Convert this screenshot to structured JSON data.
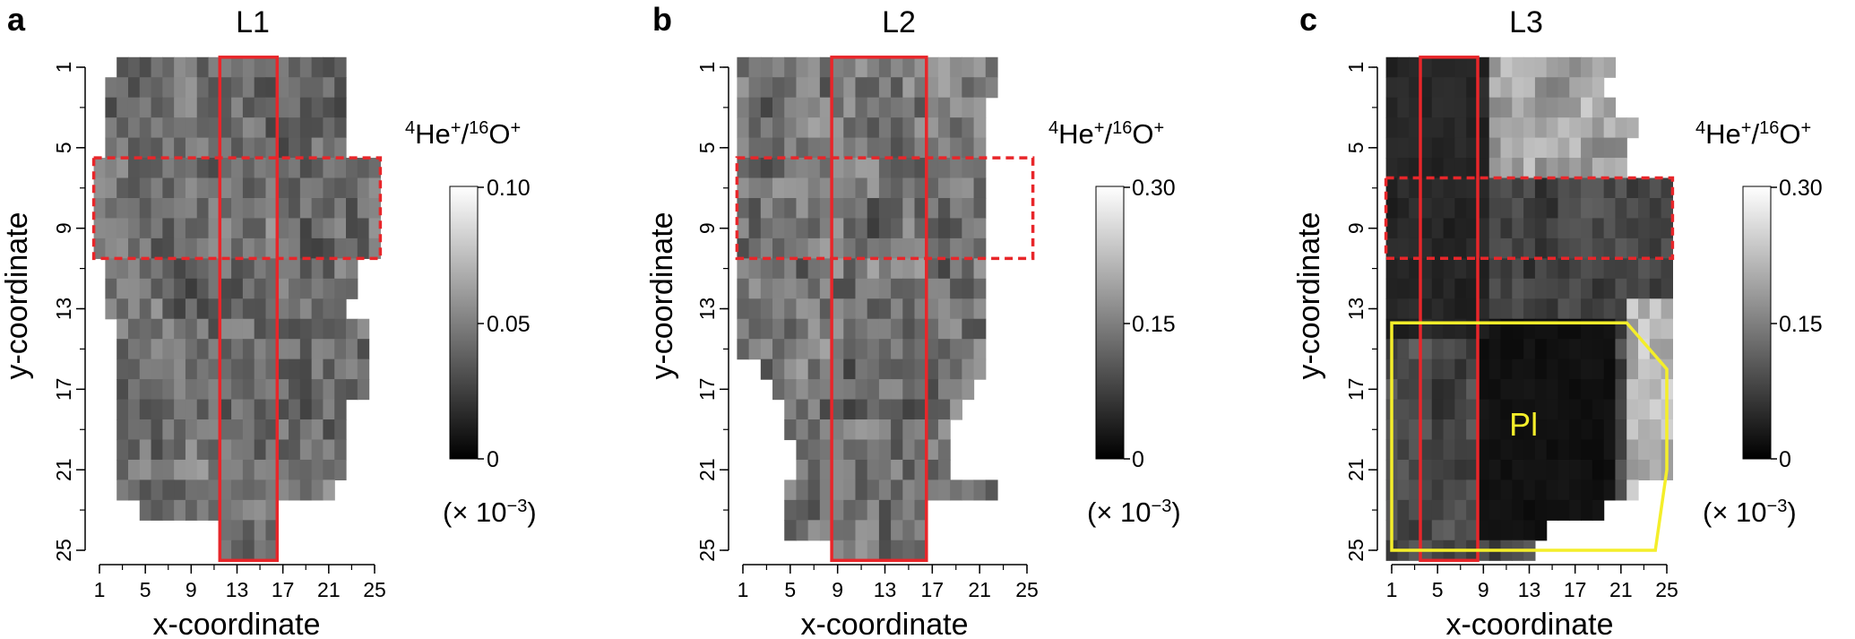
{
  "chart_data": [
    {
      "type": "heatmap",
      "panel_label": "a",
      "title": "L1",
      "xlabel": "x-coordinate",
      "ylabel": "y-coordinate",
      "xticks": [
        "1",
        "5",
        "9",
        "13",
        "17",
        "21",
        "25"
      ],
      "yticks": [
        "1",
        "5",
        "9",
        "13",
        "17",
        "21",
        "25"
      ],
      "xlim": [
        1,
        25
      ],
      "ylim": [
        1,
        25
      ],
      "colorbar": {
        "label_prefix": "4",
        "label_ion1": "He",
        "label_mid": "/",
        "label_prefix2": "16",
        "label_ion2": "O",
        "charge": "+",
        "max_label": "0.10",
        "mid_label": "0.05",
        "min_label": "0",
        "range": [
          0,
          0.1
        ],
        "unit_text": "(× 10",
        "unit_exp": "−3",
        "unit_close": ")"
      },
      "regions": [
        {
          "name": "vertical-profile",
          "style": "solid",
          "color": "#e8262a",
          "x": [
            12,
            16
          ],
          "y": [
            1,
            25
          ]
        },
        {
          "name": "horizontal-profile",
          "style": "dashed",
          "color": "#e8262a",
          "x": [
            1,
            25
          ],
          "y": [
            6,
            10
          ]
        }
      ],
      "map_extent": {
        "rows": [
          [
            3,
            22
          ],
          [
            2,
            22
          ],
          [
            2,
            22
          ],
          [
            2,
            22
          ],
          [
            2,
            22
          ],
          [
            1,
            25
          ],
          [
            1,
            25
          ],
          [
            1,
            25
          ],
          [
            1,
            25
          ],
          [
            1,
            25
          ],
          [
            2,
            23
          ],
          [
            2,
            23
          ],
          [
            2,
            22
          ],
          [
            3,
            24
          ],
          [
            3,
            24
          ],
          [
            3,
            24
          ],
          [
            3,
            24
          ],
          [
            3,
            22
          ],
          [
            3,
            22
          ],
          [
            3,
            22
          ],
          [
            3,
            22
          ],
          [
            3,
            21
          ],
          [
            5,
            16
          ],
          [
            12,
            16
          ],
          [
            12,
            16
          ]
        ]
      }
    },
    {
      "type": "heatmap",
      "panel_label": "b",
      "title": "L2",
      "xlabel": "x-coordinate",
      "ylabel": "y-coordinate",
      "xticks": [
        "1",
        "5",
        "9",
        "13",
        "17",
        "21",
        "25"
      ],
      "yticks": [
        "1",
        "5",
        "9",
        "13",
        "17",
        "21",
        "25"
      ],
      "xlim": [
        1,
        25
      ],
      "ylim": [
        1,
        25
      ],
      "colorbar": {
        "label_prefix": "4",
        "label_ion1": "He",
        "label_mid": "/",
        "label_prefix2": "16",
        "label_ion2": "O",
        "charge": "+",
        "max_label": "0.30",
        "mid_label": "0.15",
        "min_label": "0",
        "range": [
          0,
          0.3
        ],
        "unit_text": "(× 10",
        "unit_exp": "−3",
        "unit_close": ")"
      },
      "regions": [
        {
          "name": "vertical-profile",
          "style": "solid",
          "color": "#e8262a",
          "x": [
            9,
            16
          ],
          "y": [
            1,
            25
          ]
        },
        {
          "name": "horizontal-profile",
          "style": "dashed",
          "color": "#e8262a",
          "x": [
            1,
            25
          ],
          "y": [
            6,
            10
          ]
        }
      ],
      "map_extent": {
        "rows": [
          [
            1,
            22
          ],
          [
            1,
            22
          ],
          [
            1,
            21
          ],
          [
            1,
            21
          ],
          [
            1,
            21
          ],
          [
            1,
            21
          ],
          [
            1,
            21
          ],
          [
            1,
            21
          ],
          [
            1,
            21
          ],
          [
            1,
            21
          ],
          [
            1,
            21
          ],
          [
            1,
            21
          ],
          [
            1,
            21
          ],
          [
            1,
            21
          ],
          [
            1,
            21
          ],
          [
            3,
            21
          ],
          [
            4,
            20
          ],
          [
            5,
            19
          ],
          [
            5,
            18
          ],
          [
            6,
            18
          ],
          [
            6,
            18
          ],
          [
            5,
            22
          ],
          [
            5,
            16
          ],
          [
            5,
            16
          ],
          [
            9,
            16
          ]
        ]
      }
    },
    {
      "type": "heatmap",
      "panel_label": "c",
      "title": "L3",
      "xlabel": "x-coordinate",
      "ylabel": "y-coordinate",
      "xticks": [
        "1",
        "5",
        "9",
        "13",
        "17",
        "21",
        "25"
      ],
      "yticks": [
        "1",
        "5",
        "9",
        "13",
        "17",
        "21",
        "25"
      ],
      "xlim": [
        1,
        25
      ],
      "ylim": [
        1,
        25
      ],
      "colorbar": {
        "label_prefix": "4",
        "label_ion1": "He",
        "label_mid": "/",
        "label_prefix2": "16",
        "label_ion2": "O",
        "charge": "+",
        "max_label": "0.30",
        "mid_label": "0.15",
        "min_label": "0",
        "range": [
          0,
          0.3
        ],
        "unit_text": "(× 10",
        "unit_exp": "−3",
        "unit_close": ")"
      },
      "regions": [
        {
          "name": "vertical-profile",
          "style": "solid",
          "color": "#e8262a",
          "x": [
            4,
            8
          ],
          "y": [
            1,
            25
          ]
        },
        {
          "name": "horizontal-profile",
          "style": "dashed",
          "color": "#e8262a",
          "x": [
            1,
            25
          ],
          "y": [
            7,
            10
          ]
        },
        {
          "name": "pl-region",
          "style": "solid",
          "color": "#f4ee2a",
          "label": "Pl",
          "polygon": [
            [
              1,
              13.7
            ],
            [
              21.5,
              13.7
            ],
            [
              25,
              16
            ],
            [
              25,
              21
            ],
            [
              24,
              25
            ],
            [
              1,
              25
            ]
          ]
        }
      ],
      "map_extent": {
        "rows": [
          [
            1,
            20
          ],
          [
            1,
            19
          ],
          [
            1,
            20
          ],
          [
            1,
            22
          ],
          [
            1,
            21
          ],
          [
            1,
            21
          ],
          [
            1,
            25
          ],
          [
            1,
            25
          ],
          [
            1,
            25
          ],
          [
            1,
            25
          ],
          [
            1,
            25
          ],
          [
            1,
            25
          ],
          [
            1,
            25
          ],
          [
            1,
            25
          ],
          [
            1,
            25
          ],
          [
            1,
            25
          ],
          [
            1,
            25
          ],
          [
            1,
            25
          ],
          [
            1,
            25
          ],
          [
            1,
            25
          ],
          [
            1,
            25
          ],
          [
            1,
            22
          ],
          [
            1,
            19
          ],
          [
            1,
            14
          ],
          [
            1,
            13
          ]
        ]
      }
    }
  ]
}
